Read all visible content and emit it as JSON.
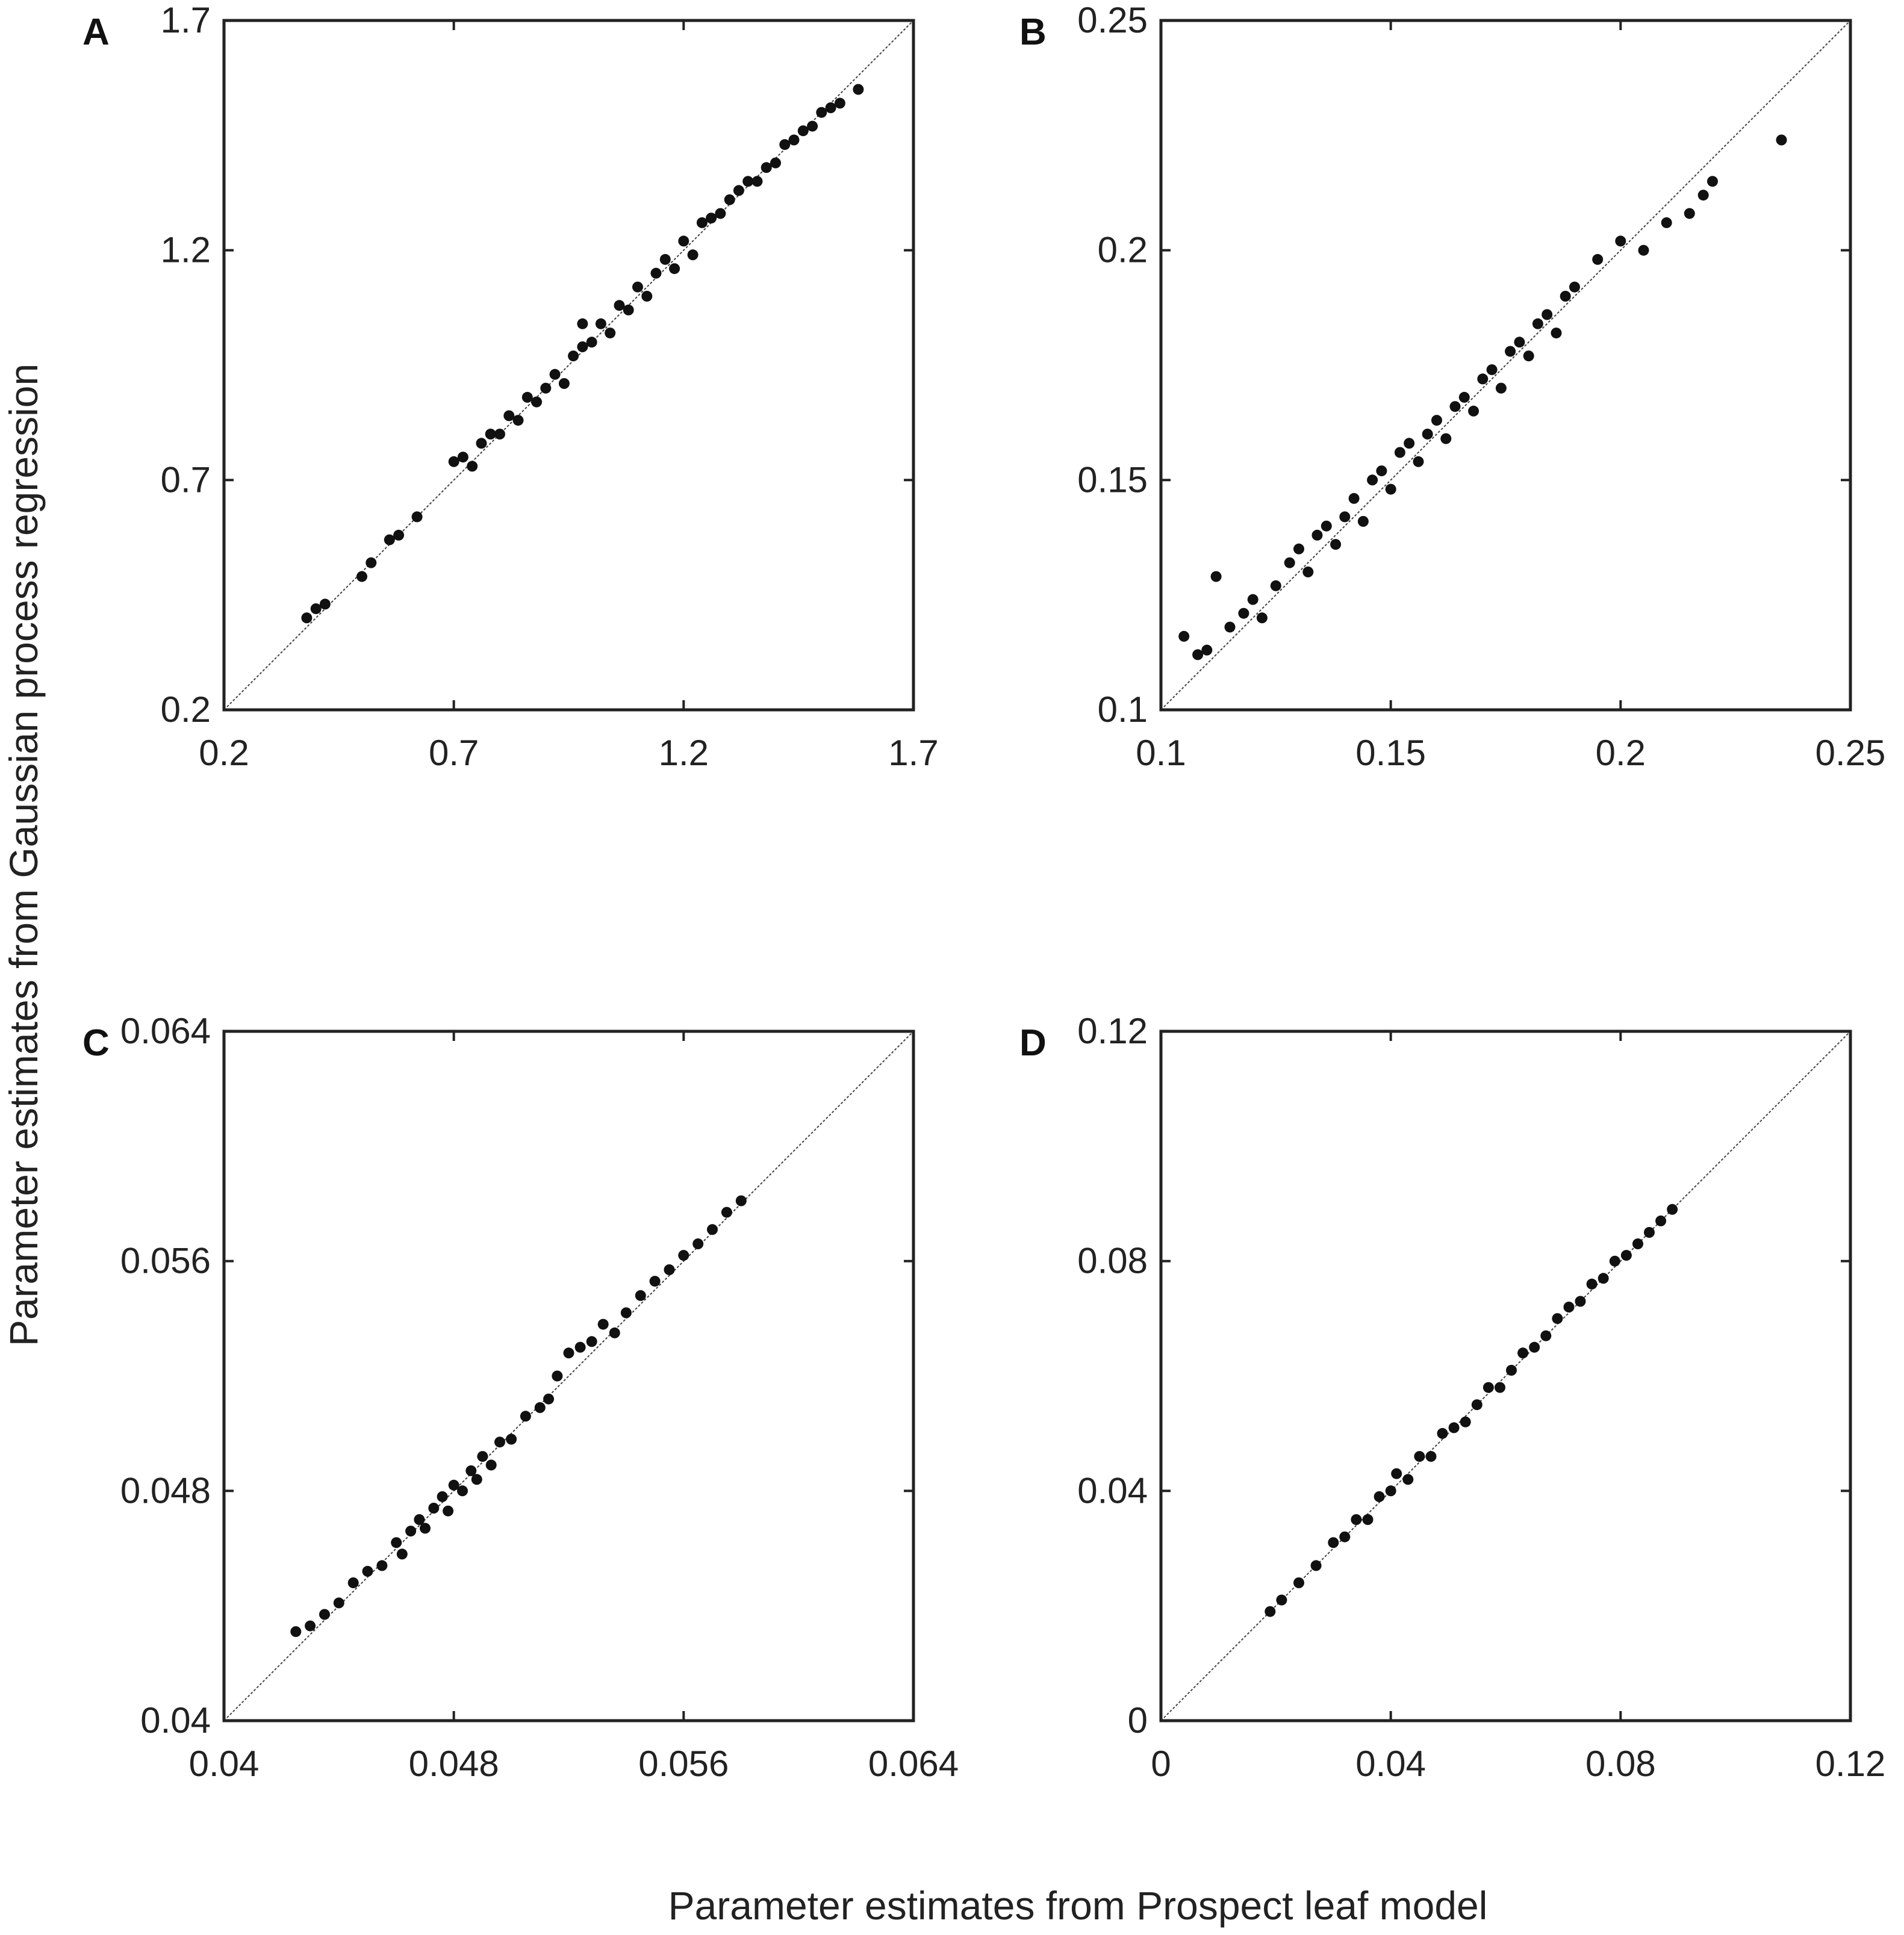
{
  "colors": {
    "marker": "#111111",
    "axis": "#222222",
    "diagonal": "#444444",
    "background": "#ffffff"
  },
  "figure": {
    "ylabel": "Parameter estimates from Gaussian process regression",
    "xlabel": "Parameter estimates from Prospect leaf model"
  },
  "chart_data": [
    {
      "panel": "A",
      "type": "scatter",
      "xlim": [
        0.2,
        1.7
      ],
      "ylim": [
        0.2,
        1.7
      ],
      "xticks": [
        "0.2",
        "0.7",
        "1.2",
        "1.7"
      ],
      "yticks": [
        "0.2",
        "0.7",
        "1.2",
        "1.7"
      ],
      "reference_line": "y = x",
      "grid": false,
      "points": [
        [
          0.38,
          0.4
        ],
        [
          0.4,
          0.42
        ],
        [
          0.42,
          0.43
        ],
        [
          0.5,
          0.49
        ],
        [
          0.52,
          0.52
        ],
        [
          0.56,
          0.57
        ],
        [
          0.58,
          0.58
        ],
        [
          0.62,
          0.62
        ],
        [
          0.7,
          0.74
        ],
        [
          0.72,
          0.75
        ],
        [
          0.74,
          0.73
        ],
        [
          0.76,
          0.78
        ],
        [
          0.78,
          0.8
        ],
        [
          0.8,
          0.8
        ],
        [
          0.82,
          0.84
        ],
        [
          0.84,
          0.83
        ],
        [
          0.86,
          0.88
        ],
        [
          0.88,
          0.87
        ],
        [
          0.9,
          0.9
        ],
        [
          0.92,
          0.93
        ],
        [
          0.94,
          0.91
        ],
        [
          0.96,
          0.97
        ],
        [
          0.98,
          0.99
        ],
        [
          0.98,
          1.04
        ],
        [
          1.0,
          1.0
        ],
        [
          1.02,
          1.04
        ],
        [
          1.04,
          1.02
        ],
        [
          1.06,
          1.08
        ],
        [
          1.08,
          1.07
        ],
        [
          1.1,
          1.12
        ],
        [
          1.12,
          1.1
        ],
        [
          1.14,
          1.15
        ],
        [
          1.16,
          1.18
        ],
        [
          1.18,
          1.16
        ],
        [
          1.2,
          1.22
        ],
        [
          1.22,
          1.19
        ],
        [
          1.24,
          1.26
        ],
        [
          1.26,
          1.27
        ],
        [
          1.28,
          1.28
        ],
        [
          1.3,
          1.31
        ],
        [
          1.32,
          1.33
        ],
        [
          1.34,
          1.35
        ],
        [
          1.36,
          1.35
        ],
        [
          1.38,
          1.38
        ],
        [
          1.4,
          1.39
        ],
        [
          1.42,
          1.43
        ],
        [
          1.44,
          1.44
        ],
        [
          1.46,
          1.46
        ],
        [
          1.48,
          1.47
        ],
        [
          1.5,
          1.5
        ],
        [
          1.52,
          1.51
        ],
        [
          1.54,
          1.52
        ],
        [
          1.58,
          1.55
        ]
      ]
    },
    {
      "panel": "B",
      "type": "scatter",
      "xlim": [
        0.1,
        0.25
      ],
      "ylim": [
        0.1,
        0.25
      ],
      "xticks": [
        "0.1",
        "0.15",
        "0.2",
        "0.25"
      ],
      "yticks": [
        "0.1",
        "0.15",
        "0.2",
        "0.25"
      ],
      "reference_line": "y = x",
      "grid": false,
      "points": [
        [
          0.105,
          0.116
        ],
        [
          0.108,
          0.112
        ],
        [
          0.11,
          0.113
        ],
        [
          0.112,
          0.129
        ],
        [
          0.115,
          0.118
        ],
        [
          0.118,
          0.121
        ],
        [
          0.12,
          0.124
        ],
        [
          0.122,
          0.12
        ],
        [
          0.125,
          0.127
        ],
        [
          0.128,
          0.132
        ],
        [
          0.13,
          0.135
        ],
        [
          0.132,
          0.13
        ],
        [
          0.134,
          0.138
        ],
        [
          0.136,
          0.14
        ],
        [
          0.138,
          0.136
        ],
        [
          0.14,
          0.142
        ],
        [
          0.142,
          0.146
        ],
        [
          0.144,
          0.141
        ],
        [
          0.146,
          0.15
        ],
        [
          0.148,
          0.152
        ],
        [
          0.15,
          0.148
        ],
        [
          0.152,
          0.156
        ],
        [
          0.154,
          0.158
        ],
        [
          0.156,
          0.154
        ],
        [
          0.158,
          0.16
        ],
        [
          0.16,
          0.163
        ],
        [
          0.162,
          0.159
        ],
        [
          0.164,
          0.166
        ],
        [
          0.166,
          0.168
        ],
        [
          0.168,
          0.165
        ],
        [
          0.17,
          0.172
        ],
        [
          0.172,
          0.174
        ],
        [
          0.174,
          0.17
        ],
        [
          0.176,
          0.178
        ],
        [
          0.178,
          0.18
        ],
        [
          0.18,
          0.177
        ],
        [
          0.182,
          0.184
        ],
        [
          0.184,
          0.186
        ],
        [
          0.186,
          0.182
        ],
        [
          0.188,
          0.19
        ],
        [
          0.19,
          0.192
        ],
        [
          0.195,
          0.198
        ],
        [
          0.2,
          0.202
        ],
        [
          0.205,
          0.2
        ],
        [
          0.21,
          0.206
        ],
        [
          0.215,
          0.208
        ],
        [
          0.218,
          0.212
        ],
        [
          0.22,
          0.215
        ],
        [
          0.235,
          0.224
        ]
      ]
    },
    {
      "panel": "C",
      "type": "scatter",
      "xlim": [
        0.04,
        0.064
      ],
      "ylim": [
        0.04,
        0.064
      ],
      "xticks": [
        "0.04",
        "0.048",
        "0.056",
        "0.064"
      ],
      "yticks": [
        "0.04",
        "0.048",
        "0.056",
        "0.064"
      ],
      "reference_line": "y = x",
      "grid": false,
      "points": [
        [
          0.0425,
          0.0431
        ],
        [
          0.043,
          0.0433
        ],
        [
          0.0435,
          0.0437
        ],
        [
          0.044,
          0.0441
        ],
        [
          0.0445,
          0.0448
        ],
        [
          0.045,
          0.0452
        ],
        [
          0.0455,
          0.0454
        ],
        [
          0.046,
          0.0462
        ],
        [
          0.0462,
          0.0458
        ],
        [
          0.0465,
          0.0466
        ],
        [
          0.0468,
          0.047
        ],
        [
          0.047,
          0.0467
        ],
        [
          0.0473,
          0.0474
        ],
        [
          0.0476,
          0.0478
        ],
        [
          0.0478,
          0.0473
        ],
        [
          0.048,
          0.0482
        ],
        [
          0.0483,
          0.048
        ],
        [
          0.0486,
          0.0487
        ],
        [
          0.0488,
          0.0484
        ],
        [
          0.049,
          0.0492
        ],
        [
          0.0493,
          0.0489
        ],
        [
          0.0496,
          0.0497
        ],
        [
          0.05,
          0.0498
        ],
        [
          0.0505,
          0.0506
        ],
        [
          0.051,
          0.0509
        ],
        [
          0.0513,
          0.0512
        ],
        [
          0.0516,
          0.052
        ],
        [
          0.052,
          0.0528
        ],
        [
          0.0524,
          0.053
        ],
        [
          0.0528,
          0.0532
        ],
        [
          0.0532,
          0.0538
        ],
        [
          0.0536,
          0.0535
        ],
        [
          0.054,
          0.0542
        ],
        [
          0.0545,
          0.0548
        ],
        [
          0.055,
          0.0553
        ],
        [
          0.0555,
          0.0557
        ],
        [
          0.056,
          0.0562
        ],
        [
          0.0565,
          0.0566
        ],
        [
          0.057,
          0.0571
        ],
        [
          0.0575,
          0.0577
        ],
        [
          0.058,
          0.0581
        ]
      ]
    },
    {
      "panel": "D",
      "type": "scatter",
      "xlim": [
        0,
        0.12
      ],
      "ylim": [
        0,
        0.12
      ],
      "xticks": [
        "0",
        "0.04",
        "0.08",
        "0.12"
      ],
      "yticks": [
        "0",
        "0.04",
        "0.08",
        "0.12"
      ],
      "reference_line": "y = x",
      "grid": false,
      "points": [
        [
          0.019,
          0.019
        ],
        [
          0.021,
          0.021
        ],
        [
          0.024,
          0.024
        ],
        [
          0.027,
          0.027
        ],
        [
          0.03,
          0.031
        ],
        [
          0.032,
          0.032
        ],
        [
          0.034,
          0.035
        ],
        [
          0.036,
          0.035
        ],
        [
          0.038,
          0.039
        ],
        [
          0.04,
          0.04
        ],
        [
          0.041,
          0.043
        ],
        [
          0.043,
          0.042
        ],
        [
          0.045,
          0.046
        ],
        [
          0.047,
          0.046
        ],
        [
          0.049,
          0.05
        ],
        [
          0.051,
          0.051
        ],
        [
          0.053,
          0.052
        ],
        [
          0.055,
          0.055
        ],
        [
          0.057,
          0.058
        ],
        [
          0.059,
          0.058
        ],
        [
          0.061,
          0.061
        ],
        [
          0.063,
          0.064
        ],
        [
          0.065,
          0.065
        ],
        [
          0.067,
          0.067
        ],
        [
          0.069,
          0.07
        ],
        [
          0.071,
          0.072
        ],
        [
          0.073,
          0.073
        ],
        [
          0.075,
          0.076
        ],
        [
          0.077,
          0.077
        ],
        [
          0.079,
          0.08
        ],
        [
          0.081,
          0.081
        ],
        [
          0.083,
          0.083
        ],
        [
          0.085,
          0.085
        ],
        [
          0.087,
          0.087
        ],
        [
          0.089,
          0.089
        ]
      ]
    }
  ]
}
